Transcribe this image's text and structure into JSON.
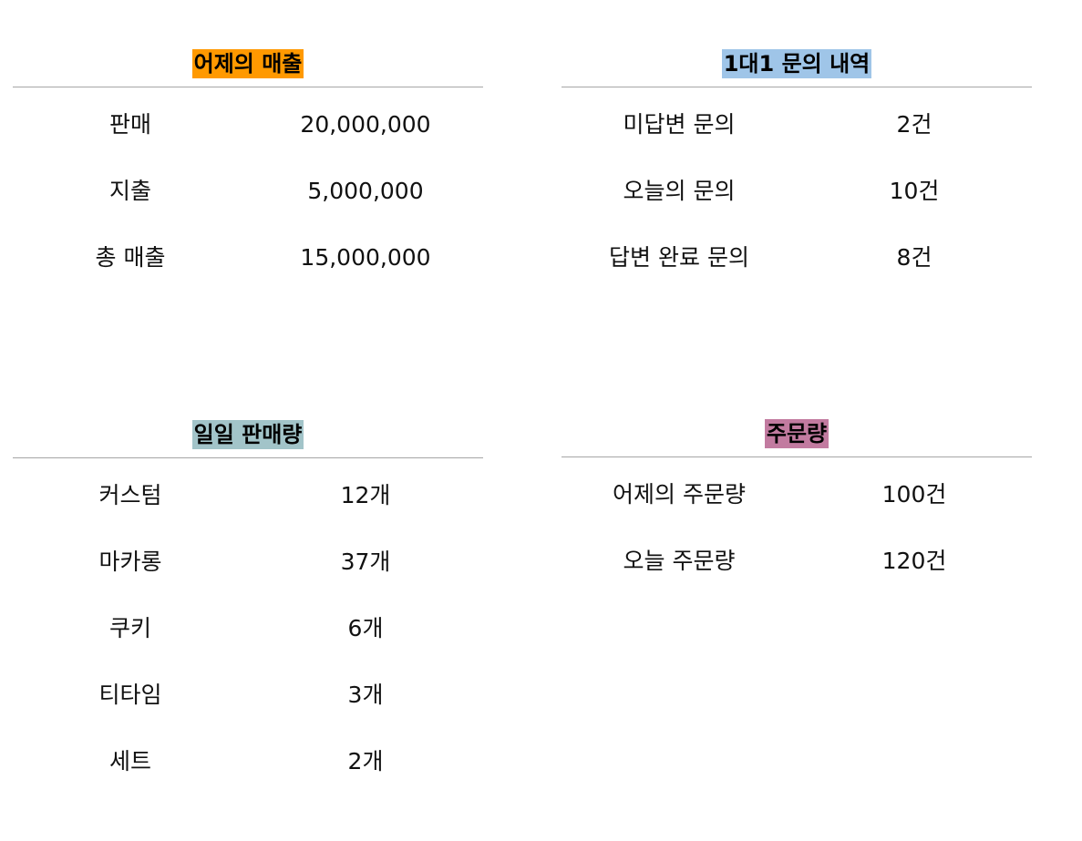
{
  "sales": {
    "title": "어제의 매출",
    "title_bg": "#ff9900",
    "rows": [
      {
        "label": "판매",
        "value": "20,000,000"
      },
      {
        "label": "지출",
        "value": "5,000,000"
      },
      {
        "label": "총 매출",
        "value": "15,000,000"
      }
    ]
  },
  "inquiry": {
    "title": "1대1 문의 내역",
    "title_bg": "#9fc5e8",
    "rows": [
      {
        "label": "미답변 문의",
        "value": "2건"
      },
      {
        "label": "오늘의 문의",
        "value": "10건"
      },
      {
        "label": "답변 완료 문의",
        "value": "8건"
      }
    ]
  },
  "daily": {
    "title": "일일 판매량",
    "title_bg": "#a2c4c9",
    "rows": [
      {
        "label": "커스텀",
        "value": "12개"
      },
      {
        "label": "마카롱",
        "value": "37개"
      },
      {
        "label": "쿠키",
        "value": "6개"
      },
      {
        "label": "티타임",
        "value": "3개"
      },
      {
        "label": "세트",
        "value": "2개"
      }
    ]
  },
  "orders": {
    "title": "주문량",
    "title_bg": "#c27ba0",
    "rows": [
      {
        "label": "어제의 주문량",
        "value": "100건"
      },
      {
        "label": "오늘 주문량",
        "value": "120건"
      }
    ]
  }
}
